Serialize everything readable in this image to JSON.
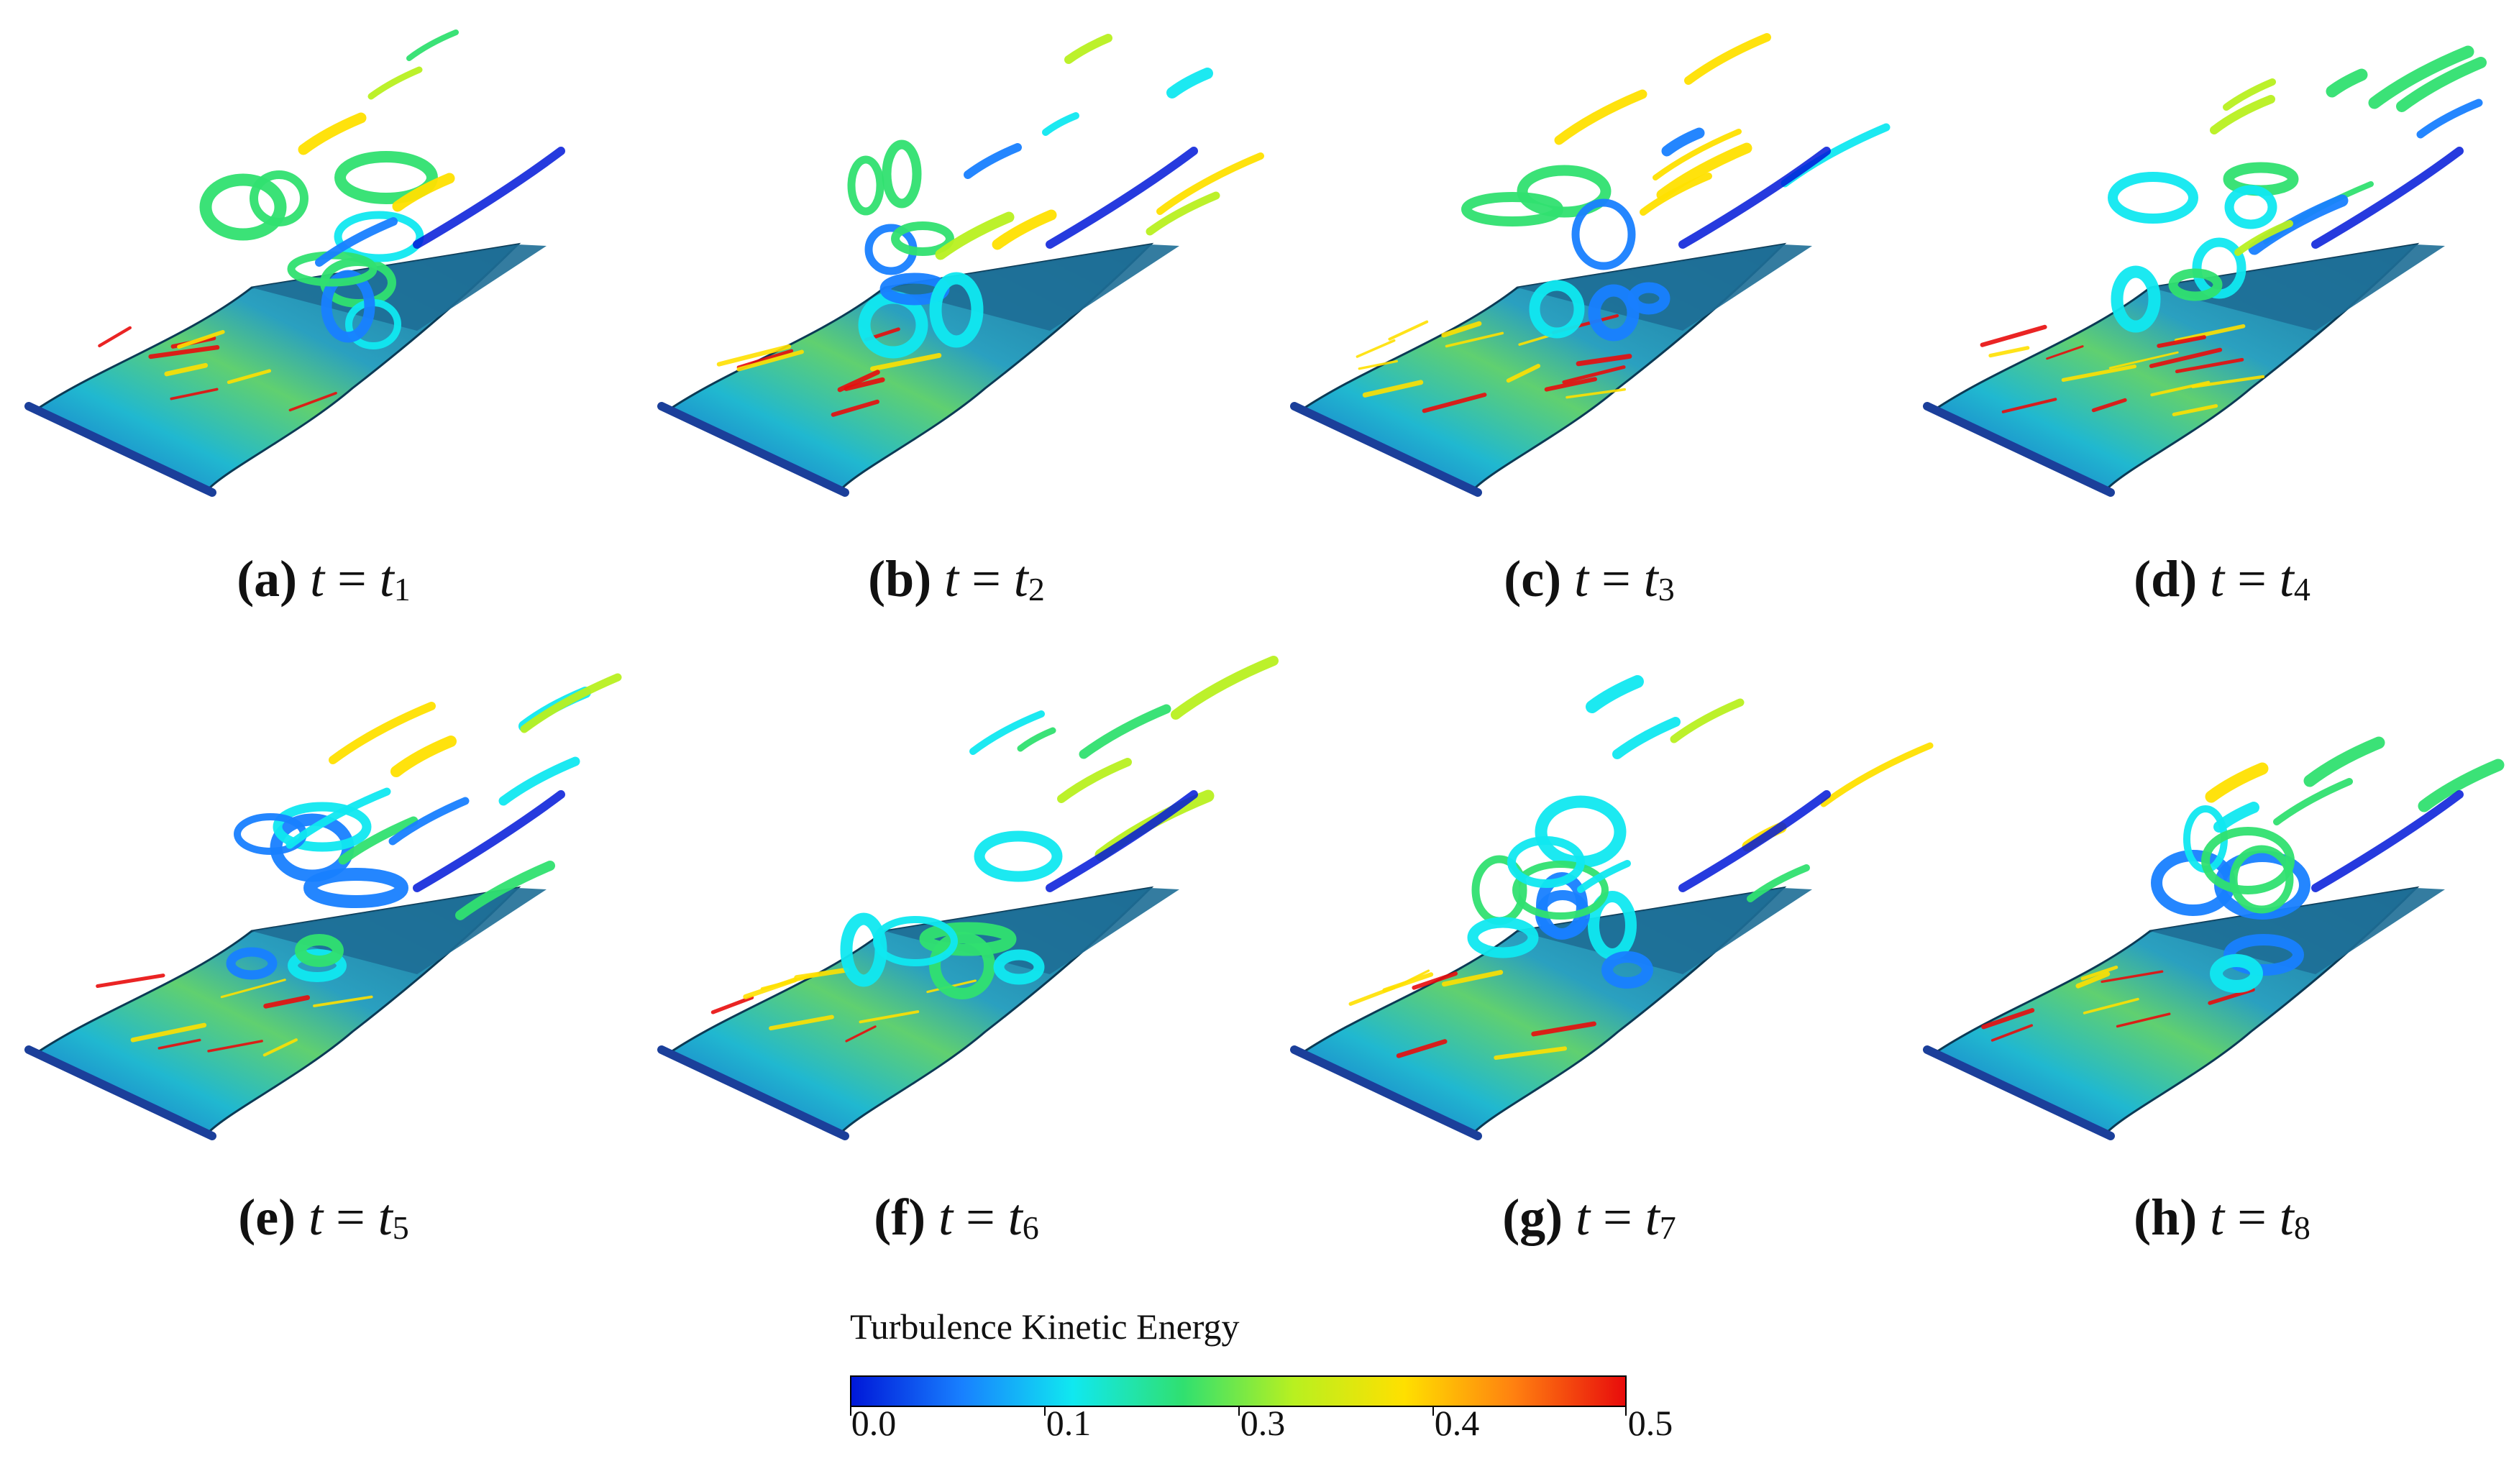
{
  "panels": [
    {
      "label": "(a)",
      "var": "t",
      "eq": "=",
      "sym": "t",
      "sub": "1"
    },
    {
      "label": "(b)",
      "var": "t",
      "eq": "=",
      "sym": "t",
      "sub": "2"
    },
    {
      "label": "(c)",
      "var": "t",
      "eq": "=",
      "sym": "t",
      "sub": "3"
    },
    {
      "label": "(d)",
      "var": "t",
      "eq": "=",
      "sym": "t",
      "sub": "4"
    },
    {
      "label": "(e)",
      "var": "t",
      "eq": "=",
      "sym": "t",
      "sub": "5"
    },
    {
      "label": "(f)",
      "var": "t",
      "eq": "=",
      "sym": "t",
      "sub": "6"
    },
    {
      "label": "(g)",
      "var": "t",
      "eq": "=",
      "sym": "t",
      "sub": "7"
    },
    {
      "label": "(h)",
      "var": "t",
      "eq": "=",
      "sym": "t",
      "sub": "8"
    }
  ],
  "legend": {
    "title": "Turbulence Kinetic Energy",
    "ticks": [
      "0.0",
      "0.1",
      "0.3",
      "0.4",
      "0.5"
    ],
    "colormap": [
      "#0018d8",
      "#1880ff",
      "#10e8f0",
      "#30e070",
      "#b8f020",
      "#ffe000",
      "#ff8010",
      "#e80c0c"
    ]
  },
  "colors": {
    "plate": "#1e6e96",
    "plate_edge": "#0b3a55"
  }
}
